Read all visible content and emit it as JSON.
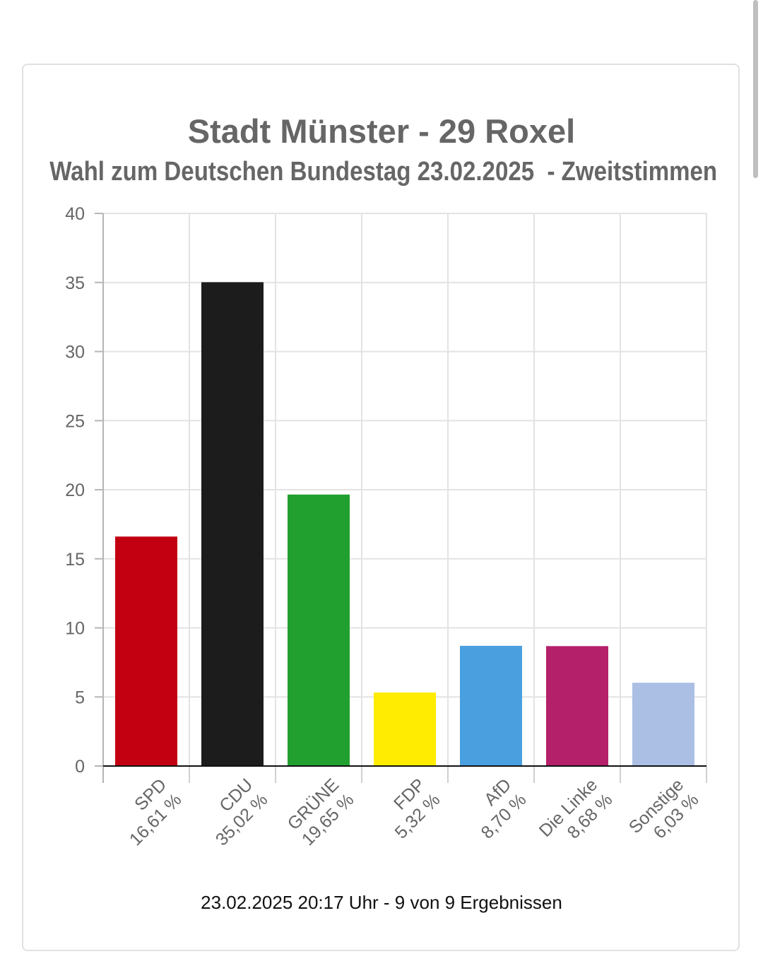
{
  "chart_data": {
    "type": "bar",
    "title": "Stadt Münster - 29 Roxel",
    "subtitle": "Wahl zum Deutschen Bundestag 23.02.2025  - Zweitstimmen",
    "categories": [
      "SPD",
      "CDU",
      "GRÜNE",
      "FDP",
      "AfD",
      "Die Linke",
      "Sonstige"
    ],
    "values": [
      16.61,
      35.02,
      19.65,
      5.32,
      8.7,
      8.68,
      6.03
    ],
    "value_labels": [
      "16,61 %",
      "35,02 %",
      "19,65 %",
      "5,32 %",
      "8,70 %",
      "8,68 %",
      "6,03 %"
    ],
    "colors": [
      "#c20012",
      "#1c1c1c",
      "#21a02f",
      "#ffec00",
      "#4a9fdf",
      "#b5206a",
      "#abbee4"
    ],
    "ylim": [
      0,
      40
    ],
    "yticks": [
      0,
      5,
      10,
      15,
      20,
      25,
      30,
      35,
      40
    ],
    "grid": true,
    "legend": "none"
  },
  "footer": "23.02.2025 20:17 Uhr - 9 von 9 Ergebnissen"
}
